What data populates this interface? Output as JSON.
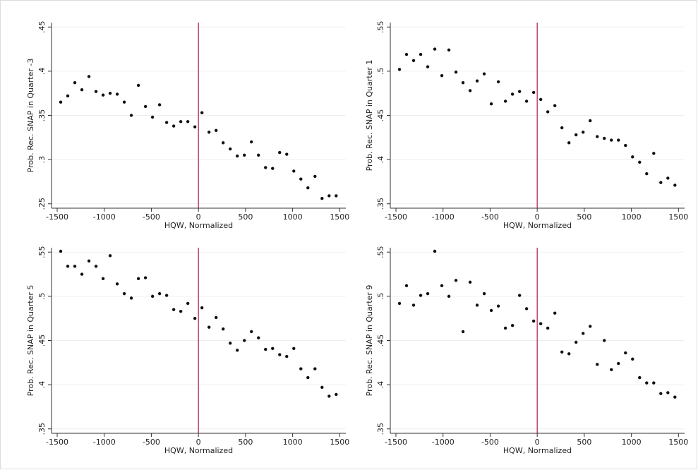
{
  "chart_data": [
    {
      "type": "scatter",
      "xlabel": "HQW, Normalized",
      "ylabel": "Prob. Rec. SNAP in Quarter -3",
      "color": "#111111",
      "grid": true,
      "reference_line": {
        "x": 0,
        "color": "#b0174e"
      },
      "xlim": [
        -1560,
        1565
      ],
      "ylim": [
        0.245,
        0.455
      ],
      "xticks": [
        -1500,
        -1000,
        -500,
        0,
        500,
        1000,
        1500
      ],
      "yticks": [
        {
          "value": 0.25,
          "label": ".25"
        },
        {
          "value": 0.3,
          "label": ".3"
        },
        {
          "value": 0.35,
          "label": ".35"
        },
        {
          "value": 0.4,
          "label": ".4"
        },
        {
          "value": 0.45,
          "label": ".45"
        }
      ],
      "x": [
        -1462.5,
        -1387.5,
        -1312.5,
        -1237.5,
        -1162.5,
        -1087.5,
        -1012.5,
        -937.5,
        -862.5,
        -787.5,
        -712.5,
        -637.5,
        -562.5,
        -487.5,
        -412.5,
        -337.5,
        -262.5,
        -187.5,
        -112.5,
        -37.5,
        37.5,
        112.5,
        187.5,
        262.5,
        337.5,
        412.5,
        487.5,
        562.5,
        637.5,
        712.5,
        787.5,
        862.5,
        937.5,
        1012.5,
        1087.5,
        1162.5,
        1237.5,
        1312.5,
        1387.5,
        1462.5
      ],
      "values": [
        0.365,
        0.372,
        0.387,
        0.379,
        0.394,
        0.377,
        0.373,
        0.375,
        0.374,
        0.365,
        0.35,
        0.384,
        0.36,
        0.348,
        0.362,
        0.342,
        0.338,
        0.343,
        0.343,
        0.337,
        0.353,
        0.331,
        0.333,
        0.319,
        0.312,
        0.304,
        0.305,
        0.32,
        0.305,
        0.291,
        0.29,
        0.308,
        0.306,
        0.287,
        0.278,
        0.268,
        0.281,
        0.256,
        0.259,
        0.259
      ]
    },
    {
      "type": "scatter",
      "xlabel": "HQW, Normalized",
      "ylabel": "Prob. Rec. SNAP in Quarter 1",
      "color": "#111111",
      "grid": true,
      "reference_line": {
        "x": 0,
        "color": "#b0174e"
      },
      "xlim": [
        -1560,
        1565
      ],
      "ylim": [
        0.345,
        0.555
      ],
      "xticks": [
        -1500,
        -1000,
        -500,
        0,
        500,
        1000,
        1500
      ],
      "yticks": [
        {
          "value": 0.35,
          "label": ".35"
        },
        {
          "value": 0.4,
          "label": ".4"
        },
        {
          "value": 0.45,
          "label": ".45"
        },
        {
          "value": 0.5,
          "label": ".5"
        },
        {
          "value": 0.55,
          "label": ".55"
        }
      ],
      "x": [
        -1462.5,
        -1387.5,
        -1312.5,
        -1237.5,
        -1162.5,
        -1087.5,
        -1012.5,
        -937.5,
        -862.5,
        -787.5,
        -712.5,
        -637.5,
        -562.5,
        -487.5,
        -412.5,
        -337.5,
        -262.5,
        -187.5,
        -112.5,
        -37.5,
        37.5,
        112.5,
        187.5,
        262.5,
        337.5,
        412.5,
        487.5,
        562.5,
        637.5,
        712.5,
        787.5,
        862.5,
        937.5,
        1012.5,
        1087.5,
        1162.5,
        1237.5,
        1312.5,
        1387.5,
        1462.5
      ],
      "values": [
        0.502,
        0.519,
        0.512,
        0.519,
        0.505,
        0.525,
        0.495,
        0.524,
        0.499,
        0.487,
        0.478,
        0.489,
        0.497,
        0.463,
        0.488,
        0.466,
        0.474,
        0.477,
        0.466,
        0.476,
        0.468,
        0.454,
        0.461,
        0.436,
        0.419,
        0.428,
        0.431,
        0.444,
        0.426,
        0.424,
        0.422,
        0.422,
        0.416,
        0.403,
        0.397,
        0.384,
        0.407,
        0.374,
        0.379,
        0.371
      ]
    },
    {
      "type": "scatter",
      "xlabel": "HQW, Normalized",
      "ylabel": "Prob. Rec. SNAP in Quarter 5",
      "color": "#111111",
      "grid": true,
      "reference_line": {
        "x": 0,
        "color": "#b0174e"
      },
      "xlim": [
        -1560,
        1565
      ],
      "ylim": [
        0.345,
        0.555
      ],
      "xticks": [
        -1500,
        -1000,
        -500,
        0,
        500,
        1000,
        1500
      ],
      "yticks": [
        {
          "value": 0.35,
          "label": ".35"
        },
        {
          "value": 0.4,
          "label": ".4"
        },
        {
          "value": 0.45,
          "label": ".45"
        },
        {
          "value": 0.5,
          "label": ".5"
        },
        {
          "value": 0.55,
          "label": ".55"
        }
      ],
      "x": [
        -1462.5,
        -1387.5,
        -1312.5,
        -1237.5,
        -1162.5,
        -1087.5,
        -1012.5,
        -937.5,
        -862.5,
        -787.5,
        -712.5,
        -637.5,
        -562.5,
        -487.5,
        -412.5,
        -337.5,
        -262.5,
        -187.5,
        -112.5,
        -37.5,
        37.5,
        112.5,
        187.5,
        262.5,
        337.5,
        412.5,
        487.5,
        562.5,
        637.5,
        712.5,
        787.5,
        862.5,
        937.5,
        1012.5,
        1087.5,
        1162.5,
        1237.5,
        1312.5,
        1387.5,
        1462.5
      ],
      "values": [
        0.551,
        0.534,
        0.534,
        0.525,
        0.54,
        0.534,
        0.52,
        0.546,
        0.514,
        0.503,
        0.498,
        0.52,
        0.521,
        0.5,
        0.503,
        0.501,
        0.485,
        0.483,
        0.492,
        0.475,
        0.487,
        0.465,
        0.476,
        0.463,
        0.447,
        0.439,
        0.45,
        0.46,
        0.453,
        0.44,
        0.441,
        0.434,
        0.432,
        0.441,
        0.418,
        0.408,
        0.418,
        0.397,
        0.387,
        0.389
      ]
    },
    {
      "type": "scatter",
      "xlabel": "HQW, Normalized",
      "ylabel": "Prob. Rec. SNAP in Quarter 9",
      "color": "#111111",
      "grid": true,
      "reference_line": {
        "x": 0,
        "color": "#b0174e"
      },
      "xlim": [
        -1560,
        1565
      ],
      "ylim": [
        0.345,
        0.555
      ],
      "xticks": [
        -1500,
        -1000,
        -500,
        0,
        500,
        1000,
        1500
      ],
      "yticks": [
        {
          "value": 0.35,
          "label": ".35"
        },
        {
          "value": 0.4,
          "label": ".4"
        },
        {
          "value": 0.45,
          "label": ".45"
        },
        {
          "value": 0.5,
          "label": ".5"
        },
        {
          "value": 0.55,
          "label": ".55"
        }
      ],
      "x": [
        -1462.5,
        -1387.5,
        -1312.5,
        -1237.5,
        -1162.5,
        -1087.5,
        -1012.5,
        -937.5,
        -862.5,
        -787.5,
        -712.5,
        -637.5,
        -562.5,
        -487.5,
        -412.5,
        -337.5,
        -262.5,
        -187.5,
        -112.5,
        -37.5,
        37.5,
        112.5,
        187.5,
        262.5,
        337.5,
        412.5,
        487.5,
        562.5,
        637.5,
        712.5,
        787.5,
        862.5,
        937.5,
        1012.5,
        1087.5,
        1162.5,
        1237.5,
        1312.5,
        1387.5,
        1462.5
      ],
      "values": [
        0.492,
        0.512,
        0.49,
        0.501,
        0.503,
        0.551,
        0.512,
        0.5,
        0.518,
        0.46,
        0.516,
        0.49,
        0.503,
        0.484,
        0.489,
        0.464,
        0.467,
        0.501,
        0.486,
        0.472,
        0.469,
        0.464,
        0.481,
        0.437,
        0.435,
        0.448,
        0.458,
        0.466,
        0.423,
        0.45,
        0.417,
        0.424,
        0.436,
        0.429,
        0.408,
        0.402,
        0.402,
        0.39,
        0.391,
        0.386
      ]
    }
  ]
}
